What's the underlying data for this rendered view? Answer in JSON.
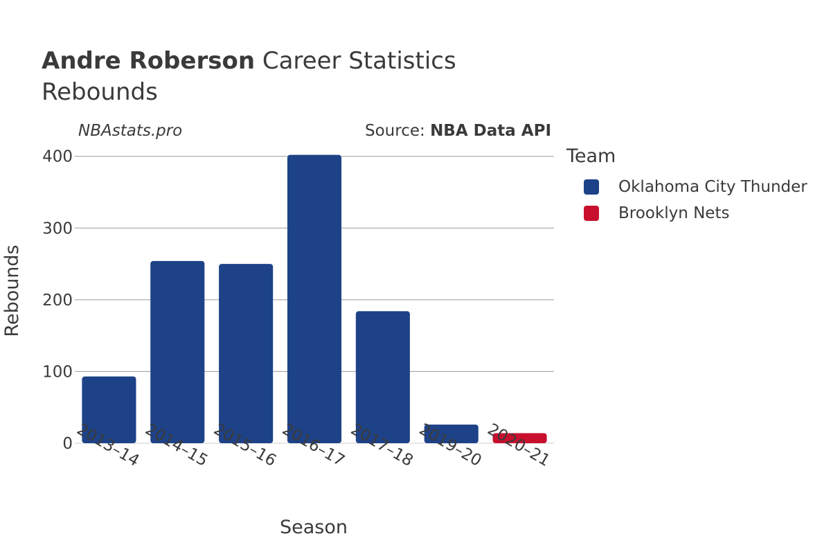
{
  "title": {
    "player": "Andre Roberson",
    "rest": "Career Statistics",
    "subtitle": "Rebounds"
  },
  "site": "NBAstats.pro",
  "source": {
    "prefix": "Source: ",
    "name": "NBA Data API"
  },
  "legend": {
    "title": "Team",
    "items": [
      {
        "label": "Oklahoma City Thunder",
        "color": "#1d4288"
      },
      {
        "label": "Brooklyn Nets",
        "color": "#c8102e"
      }
    ]
  },
  "chart_data": {
    "type": "bar",
    "title": "Andre Roberson Career Statistics Rebounds",
    "xlabel": "Season",
    "ylabel": "Rebounds",
    "ylim": [
      0,
      420
    ],
    "yticks": [
      0,
      100,
      200,
      300,
      400
    ],
    "categories": [
      "2013–14",
      "2014–15",
      "2015–16",
      "2016–17",
      "2017–18",
      "2019–20",
      "2020–21"
    ],
    "values": [
      93,
      254,
      250,
      402,
      184,
      26,
      14
    ],
    "teams": [
      "Oklahoma City Thunder",
      "Oklahoma City Thunder",
      "Oklahoma City Thunder",
      "Oklahoma City Thunder",
      "Oklahoma City Thunder",
      "Oklahoma City Thunder",
      "Brooklyn Nets"
    ],
    "legend_title": "Team",
    "grid": true
  }
}
